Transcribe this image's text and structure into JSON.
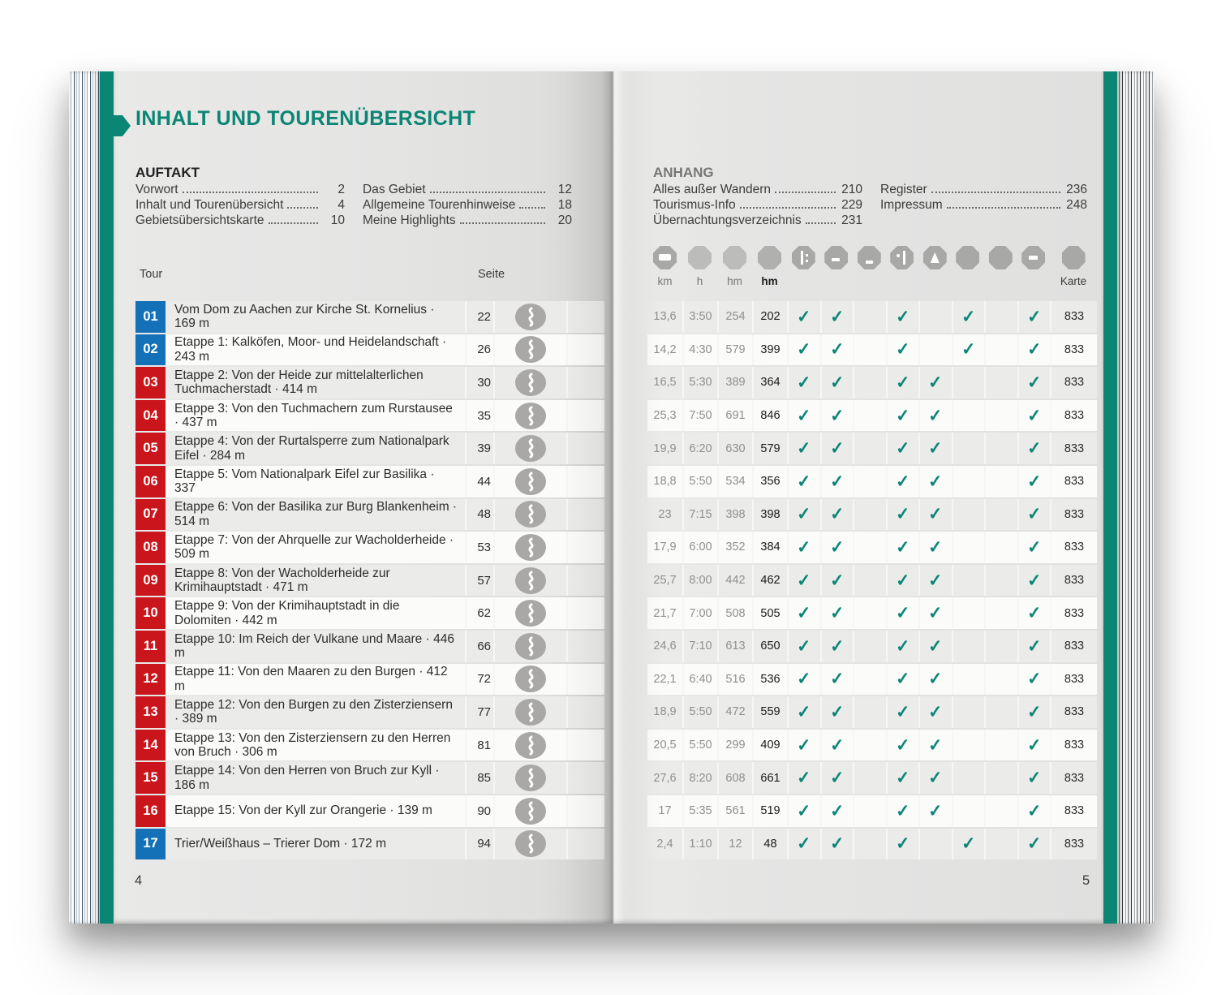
{
  "page": {
    "title": "INHALT UND TOURENÜBERSICHT",
    "left_folio": "4",
    "right_folio": "5"
  },
  "auftakt": {
    "heading": "AUFTAKT",
    "col1": [
      {
        "label": "Vorwort",
        "page": "2"
      },
      {
        "label": "Inhalt und Tourenübersicht",
        "page": "4"
      },
      {
        "label": "Gebietsübersichtskarte",
        "page": "10"
      }
    ],
    "col2": [
      {
        "label": "Das Gebiet",
        "page": "12"
      },
      {
        "label": "Allgemeine Tourenhinweise",
        "page": "18"
      },
      {
        "label": "Meine Highlights",
        "page": "20"
      }
    ]
  },
  "anhang": {
    "heading": "ANHANG",
    "col1": [
      {
        "label": "Alles außer Wandern",
        "page": "210"
      },
      {
        "label": "Tourismus-Info",
        "page": "229"
      },
      {
        "label": "Übernachtungsverzeichnis",
        "page": "231"
      }
    ],
    "col2": [
      {
        "label": "Register",
        "page": "236"
      },
      {
        "label": "Impressum",
        "page": "248"
      }
    ]
  },
  "legend": {
    "icons": [
      {
        "name": "distance-icon",
        "label": "km",
        "glyph": "plate",
        "tone": ""
      },
      {
        "name": "duration-icon",
        "label": "h",
        "glyph": "",
        "tone": "t-light"
      },
      {
        "name": "ascent-icon",
        "label": "hm",
        "glyph": "",
        "tone": "t-light"
      },
      {
        "name": "descent-icon",
        "label": "hm",
        "glyph": "",
        "tone": "t-mid",
        "label_style": "strong"
      },
      {
        "name": "signpost-icon",
        "label": "",
        "glyph": "sign",
        "tone": ""
      },
      {
        "name": "legend-icon-6",
        "label": "",
        "glyph": "dashlow",
        "tone": ""
      },
      {
        "name": "legend-icon-7",
        "label": "",
        "glyph": "dashlower",
        "tone": ""
      },
      {
        "name": "legend-icon-8",
        "label": "",
        "glyph": "dotbar",
        "tone": ""
      },
      {
        "name": "legend-icon-9",
        "label": "",
        "glyph": "person",
        "tone": ""
      },
      {
        "name": "legend-icon-10",
        "label": "",
        "glyph": "",
        "tone": ""
      },
      {
        "name": "legend-icon-11",
        "label": "",
        "glyph": "",
        "tone": ""
      },
      {
        "name": "legend-icon-12",
        "label": "",
        "glyph": "dash",
        "tone": ""
      },
      {
        "name": "map-icon",
        "label": "Karte",
        "glyph": "",
        "tone": "",
        "label_style": "dark"
      }
    ]
  },
  "table": {
    "tour_header": "Tour",
    "seite_header": "Seite",
    "check_glyph": "✓",
    "rows": [
      {
        "num": "01",
        "color": "blue",
        "title": "Vom Dom zu Aachen zur Kirche St. Kornelius · 169 m",
        "seite": "22",
        "km": "13,6",
        "h": "3:50",
        "hm_up": "254",
        "hm_down": "202",
        "checks": [
          1,
          1,
          0,
          1,
          0,
          1,
          0,
          1
        ],
        "karte": "833"
      },
      {
        "num": "02",
        "color": "blue",
        "title": "Etappe 1: Kalköfen, Moor- und Heidelandschaft · 243 m",
        "seite": "26",
        "km": "14,2",
        "h": "4:30",
        "hm_up": "579",
        "hm_down": "399",
        "checks": [
          1,
          1,
          0,
          1,
          0,
          1,
          0,
          1
        ],
        "karte": "833"
      },
      {
        "num": "03",
        "color": "red",
        "title": "Etappe 2: Von der Heide zur mittelalterlichen Tuchmacherstadt · 414 m",
        "seite": "30",
        "km": "16,5",
        "h": "5:30",
        "hm_up": "389",
        "hm_down": "364",
        "checks": [
          1,
          1,
          0,
          1,
          1,
          0,
          0,
          1
        ],
        "karte": "833"
      },
      {
        "num": "04",
        "color": "red",
        "title": "Etappe 3: Von den Tuchmachern zum Rurstausee · 437 m",
        "seite": "35",
        "km": "25,3",
        "h": "7:50",
        "hm_up": "691",
        "hm_down": "846",
        "checks": [
          1,
          1,
          0,
          1,
          1,
          0,
          0,
          1
        ],
        "karte": "833"
      },
      {
        "num": "05",
        "color": "red",
        "title": "Etappe 4: Von der Rurtalsperre zum Nationalpark Eifel · 284 m",
        "seite": "39",
        "km": "19,9",
        "h": "6:20",
        "hm_up": "630",
        "hm_down": "579",
        "checks": [
          1,
          1,
          0,
          1,
          1,
          0,
          0,
          1
        ],
        "karte": "833"
      },
      {
        "num": "06",
        "color": "red",
        "title": "Etappe 5: Vom Nationalpark Eifel zur Basilika · 337",
        "seite": "44",
        "km": "18,8",
        "h": "5:50",
        "hm_up": "534",
        "hm_down": "356",
        "checks": [
          1,
          1,
          0,
          1,
          1,
          0,
          0,
          1
        ],
        "karte": "833"
      },
      {
        "num": "07",
        "color": "red",
        "title": "Etappe 6: Von der Basilika zur Burg Blankenheim · 514 m",
        "seite": "48",
        "km": "23",
        "h": "7:15",
        "hm_up": "398",
        "hm_down": "398",
        "checks": [
          1,
          1,
          0,
          1,
          1,
          0,
          0,
          1
        ],
        "karte": "833"
      },
      {
        "num": "08",
        "color": "red",
        "title": "Etappe 7: Von der Ahrquelle zur Wacholderheide · 509 m",
        "seite": "53",
        "km": "17,9",
        "h": "6:00",
        "hm_up": "352",
        "hm_down": "384",
        "checks": [
          1,
          1,
          0,
          1,
          1,
          0,
          0,
          1
        ],
        "karte": "833"
      },
      {
        "num": "09",
        "color": "red",
        "title": "Etappe 8: Von der Wacholderheide zur Krimihauptstadt · 471 m",
        "seite": "57",
        "km": "25,7",
        "h": "8:00",
        "hm_up": "442",
        "hm_down": "462",
        "checks": [
          1,
          1,
          0,
          1,
          1,
          0,
          0,
          1
        ],
        "karte": "833"
      },
      {
        "num": "10",
        "color": "red",
        "title": "Etappe 9: Von der Krimihauptstadt in die Dolomiten · 442 m",
        "seite": "62",
        "km": "21,7",
        "h": "7:00",
        "hm_up": "508",
        "hm_down": "505",
        "checks": [
          1,
          1,
          0,
          1,
          1,
          0,
          0,
          1
        ],
        "karte": "833"
      },
      {
        "num": "11",
        "color": "red",
        "title": "Etappe 10: Im Reich der Vulkane und Maare · 446 m",
        "seite": "66",
        "km": "24,6",
        "h": "7:10",
        "hm_up": "613",
        "hm_down": "650",
        "checks": [
          1,
          1,
          0,
          1,
          1,
          0,
          0,
          1
        ],
        "karte": "833"
      },
      {
        "num": "12",
        "color": "red",
        "title": "Etappe 11: Von den Maaren zu den Burgen · 412 m",
        "seite": "72",
        "km": "22,1",
        "h": "6:40",
        "hm_up": "516",
        "hm_down": "536",
        "checks": [
          1,
          1,
          0,
          1,
          1,
          0,
          0,
          1
        ],
        "karte": "833"
      },
      {
        "num": "13",
        "color": "red",
        "title": "Etappe 12: Von den Burgen zu den Zisterziensern · 389 m",
        "seite": "77",
        "km": "18,9",
        "h": "5:50",
        "hm_up": "472",
        "hm_down": "559",
        "checks": [
          1,
          1,
          0,
          1,
          1,
          0,
          0,
          1
        ],
        "karte": "833"
      },
      {
        "num": "14",
        "color": "red",
        "title": "Etappe 13: Von den Zisterziensern zu den Herren von Bruch · 306 m",
        "seite": "81",
        "km": "20,5",
        "h": "5:50",
        "hm_up": "299",
        "hm_down": "409",
        "checks": [
          1,
          1,
          0,
          1,
          1,
          0,
          0,
          1
        ],
        "karte": "833"
      },
      {
        "num": "15",
        "color": "red",
        "title": "Etappe 14: Von den Herren von Bruch zur Kyll · 186 m",
        "seite": "85",
        "km": "27,6",
        "h": "8:20",
        "hm_up": "608",
        "hm_down": "661",
        "checks": [
          1,
          1,
          0,
          1,
          1,
          0,
          0,
          1
        ],
        "karte": "833"
      },
      {
        "num": "16",
        "color": "red",
        "title": "Etappe 15: Von der Kyll zur Orangerie · 139 m",
        "seite": "90",
        "km": "17",
        "h": "5:35",
        "hm_up": "561",
        "hm_down": "519",
        "checks": [
          1,
          1,
          0,
          1,
          1,
          0,
          0,
          1
        ],
        "karte": "833"
      },
      {
        "num": "17",
        "color": "blue",
        "title": "Trier/Weißhaus – Trierer Dom · 172 m",
        "seite": "94",
        "km": "2,4",
        "h": "1:10",
        "hm_up": "12",
        "hm_down": "48",
        "checks": [
          1,
          1,
          0,
          1,
          0,
          1,
          0,
          1
        ],
        "karte": "833"
      }
    ]
  },
  "colors": {
    "accent_teal": "#0b8574",
    "tour_blue": "#1471b8",
    "tour_red": "#c9151b",
    "row_gray": "#ebebea",
    "row_white": "#fbfbfa"
  }
}
